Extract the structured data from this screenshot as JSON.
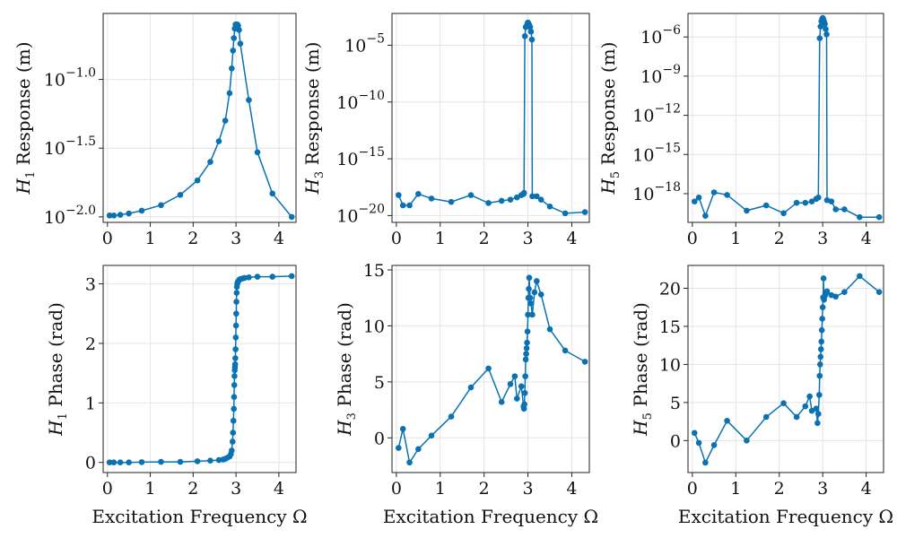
{
  "colors": {
    "series": "#0a72b2",
    "grid": "#e4e4e4",
    "frame": "#222222"
  },
  "chart_data": [
    {
      "type": "scatter",
      "yscale": "log10",
      "ylabel": {
        "symbol": "H",
        "sub": "1",
        "text": "Response (m)"
      },
      "xlabel": "",
      "xlim": [
        -0.1,
        4.4
      ],
      "ylim": [
        -2.04,
        -0.52
      ],
      "xticks": [
        0,
        1,
        2,
        3,
        4
      ],
      "yticks": [
        {
          "v": -1.0,
          "base": "10",
          "exp": "−1.0"
        },
        {
          "v": -1.5,
          "base": "10",
          "exp": "−1.5"
        },
        {
          "v": -2.0,
          "base": "10",
          "exp": "−2.0"
        }
      ],
      "grid": true,
      "x": [
        0.05,
        0.15,
        0.3,
        0.5,
        0.8,
        1.25,
        1.7,
        2.1,
        2.4,
        2.6,
        2.75,
        2.85,
        2.9,
        2.93,
        2.95,
        2.97,
        2.99,
        3.0,
        3.01,
        3.03,
        3.05,
        3.07,
        3.1,
        3.3,
        3.5,
        3.85,
        4.3
      ],
      "y": [
        -1.99,
        -1.99,
        -1.985,
        -1.975,
        -1.955,
        -1.915,
        -1.84,
        -1.735,
        -1.6,
        -1.45,
        -1.3,
        -1.1,
        -0.92,
        -0.79,
        -0.7,
        -0.63,
        -0.6,
        -0.6,
        -0.6,
        -0.6,
        -0.61,
        -0.64,
        -0.74,
        -1.15,
        -1.53,
        -1.83,
        -2.0
      ]
    },
    {
      "type": "scatter",
      "yscale": "log10",
      "ylabel": {
        "symbol": "H",
        "sub": "3",
        "text": "Response (m)"
      },
      "xlabel": "",
      "xlim": [
        -0.1,
        4.4
      ],
      "ylim": [
        -20.6,
        -2.2
      ],
      "xticks": [
        0,
        1,
        2,
        3,
        4
      ],
      "yticks": [
        {
          "v": -5,
          "base": "10",
          "exp": "−5"
        },
        {
          "v": -10,
          "base": "10",
          "exp": "−10"
        },
        {
          "v": -15,
          "base": "10",
          "exp": "−15"
        },
        {
          "v": -20,
          "base": "10",
          "exp": "−20"
        }
      ],
      "grid": true,
      "x": [
        0.05,
        0.15,
        0.3,
        0.5,
        0.8,
        1.25,
        1.7,
        2.1,
        2.4,
        2.6,
        2.75,
        2.85,
        2.9,
        2.91,
        2.93,
        2.95,
        2.97,
        2.99,
        3.0,
        3.01,
        3.03,
        3.05,
        3.07,
        3.09,
        3.1,
        3.2,
        3.3,
        3.5,
        3.85,
        4.3
      ],
      "y": [
        -18.2,
        -19.1,
        -19.1,
        -18.1,
        -18.5,
        -18.8,
        -18.2,
        -18.9,
        -18.7,
        -18.6,
        -18.4,
        -18.2,
        -18.1,
        -18.0,
        -4.2,
        -3.4,
        -3.3,
        -3.1,
        -3.0,
        -3.1,
        -3.2,
        -3.4,
        -3.8,
        -4.5,
        -18.3,
        -18.3,
        -18.6,
        -19.2,
        -19.8,
        -19.7
      ]
    },
    {
      "type": "scatter",
      "yscale": "log10",
      "ylabel": {
        "symbol": "H",
        "sub": "5",
        "text": "Response (m)"
      },
      "xlabel": "",
      "xlim": [
        -0.1,
        4.4
      ],
      "ylim": [
        -20.2,
        -4.2
      ],
      "xticks": [
        0,
        1,
        2,
        3,
        4
      ],
      "yticks": [
        {
          "v": -6,
          "base": "10",
          "exp": "−6"
        },
        {
          "v": -9,
          "base": "10",
          "exp": "−9"
        },
        {
          "v": -12,
          "base": "10",
          "exp": "−12"
        },
        {
          "v": -15,
          "base": "10",
          "exp": "−15"
        },
        {
          "v": -18,
          "base": "10",
          "exp": "−18"
        }
      ],
      "grid": true,
      "x": [
        0.05,
        0.15,
        0.3,
        0.5,
        0.8,
        1.25,
        1.7,
        2.1,
        2.4,
        2.6,
        2.75,
        2.85,
        2.9,
        2.93,
        2.95,
        2.97,
        2.99,
        3.0,
        3.01,
        3.03,
        3.05,
        3.07,
        3.09,
        3.1,
        3.2,
        3.3,
        3.5,
        3.85,
        4.3
      ],
      "y": [
        -18.6,
        -18.3,
        -19.7,
        -17.9,
        -18.1,
        -19.3,
        -18.9,
        -19.5,
        -18.7,
        -18.7,
        -18.6,
        -18.4,
        -18.3,
        -6.1,
        -5.2,
        -4.8,
        -4.6,
        -4.55,
        -4.6,
        -4.8,
        -5.0,
        -5.4,
        -5.8,
        -18.5,
        -18.6,
        -19.2,
        -19.2,
        -19.8,
        -19.8
      ]
    },
    {
      "type": "scatter",
      "yscale": "linear",
      "ylabel": {
        "symbol": "H",
        "sub": "1",
        "text": "Phase (rad)"
      },
      "xlabel": "Excitation Frequency Ω",
      "xlim": [
        -0.1,
        4.4
      ],
      "ylim": [
        -0.17,
        3.31
      ],
      "xticks": [
        0,
        1,
        2,
        3,
        4
      ],
      "yticks": [
        {
          "v": 0,
          "label": "0"
        },
        {
          "v": 1,
          "label": "1"
        },
        {
          "v": 2,
          "label": "2"
        },
        {
          "v": 3,
          "label": "3"
        }
      ],
      "grid": true,
      "x": [
        0.05,
        0.15,
        0.3,
        0.5,
        0.8,
        1.25,
        1.7,
        2.1,
        2.4,
        2.6,
        2.7,
        2.75,
        2.8,
        2.85,
        2.88,
        2.9,
        2.92,
        2.93,
        2.94,
        2.95,
        2.955,
        2.96,
        2.965,
        2.97,
        2.975,
        2.98,
        2.985,
        2.99,
        2.995,
        3.0,
        3.005,
        3.01,
        3.015,
        3.02,
        3.03,
        3.04,
        3.06,
        3.08,
        3.1,
        3.15,
        3.2,
        3.3,
        3.5,
        3.85,
        4.3
      ],
      "y": [
        0.0,
        0.0,
        0.0,
        0.0,
        0.005,
        0.01,
        0.01,
        0.02,
        0.03,
        0.04,
        0.05,
        0.06,
        0.08,
        0.1,
        0.14,
        0.2,
        0.35,
        0.5,
        0.7,
        0.9,
        1.1,
        1.3,
        1.45,
        1.55,
        1.6,
        1.65,
        1.75,
        1.9,
        2.1,
        2.3,
        2.5,
        2.7,
        2.85,
        2.95,
        3.0,
        3.03,
        3.05,
        3.07,
        3.08,
        3.09,
        3.1,
        3.11,
        3.12,
        3.12,
        3.13
      ]
    },
    {
      "type": "scatter",
      "yscale": "linear",
      "ylabel": {
        "symbol": "H",
        "sub": "3",
        "text": "Phase (rad)"
      },
      "xlabel": "Excitation Frequency Ω",
      "xlim": [
        -0.1,
        4.4
      ],
      "ylim": [
        -3.1,
        15.4
      ],
      "xticks": [
        0,
        1,
        2,
        3,
        4
      ],
      "yticks": [
        {
          "v": 0,
          "label": "0"
        },
        {
          "v": 5,
          "label": "5"
        },
        {
          "v": 10,
          "label": "10"
        },
        {
          "v": 15,
          "label": "15"
        }
      ],
      "grid": true,
      "x": [
        0.05,
        0.15,
        0.3,
        0.5,
        0.8,
        1.25,
        1.7,
        2.1,
        2.4,
        2.6,
        2.7,
        2.75,
        2.85,
        2.9,
        2.91,
        2.92,
        2.93,
        2.94,
        2.95,
        2.96,
        2.97,
        2.98,
        2.99,
        3.0,
        3.01,
        3.02,
        3.03,
        3.05,
        3.07,
        3.1,
        3.15,
        3.2,
        3.3,
        3.5,
        3.85,
        4.3
      ],
      "y": [
        -0.9,
        0.8,
        -2.2,
        -1.0,
        0.2,
        1.9,
        4.5,
        6.2,
        3.2,
        4.8,
        5.5,
        3.5,
        4.6,
        2.8,
        2.6,
        3.0,
        4.0,
        5.5,
        7.0,
        7.5,
        8.0,
        8.5,
        9.5,
        11.0,
        12.5,
        13.3,
        14.3,
        12.5,
        12.0,
        11.0,
        13.0,
        14.0,
        12.8,
        9.7,
        7.8,
        6.8
      ]
    },
    {
      "type": "scatter",
      "yscale": "linear",
      "ylabel": {
        "symbol": "H",
        "sub": "5",
        "text": "Phase (rad)"
      },
      "xlabel": "Excitation Frequency Ω",
      "xlim": [
        -0.1,
        4.4
      ],
      "ylim": [
        -4.2,
        23.0
      ],
      "xticks": [
        0,
        1,
        2,
        3,
        4
      ],
      "yticks": [
        {
          "v": 0,
          "label": "0"
        },
        {
          "v": 5,
          "label": "5"
        },
        {
          "v": 10,
          "label": "10"
        },
        {
          "v": 15,
          "label": "15"
        },
        {
          "v": 20,
          "label": "20"
        }
      ],
      "grid": true,
      "x": [
        0.05,
        0.15,
        0.3,
        0.5,
        0.8,
        1.25,
        1.7,
        2.1,
        2.4,
        2.6,
        2.7,
        2.75,
        2.85,
        2.88,
        2.9,
        2.92,
        2.93,
        2.94,
        2.95,
        2.96,
        2.97,
        2.98,
        2.99,
        3.0,
        3.01,
        3.02,
        3.03,
        3.05,
        3.07,
        3.1,
        3.2,
        3.3,
        3.5,
        3.85,
        4.3
      ],
      "y": [
        1.0,
        -0.3,
        -2.9,
        -0.6,
        2.6,
        0.0,
        3.1,
        4.9,
        3.1,
        4.5,
        5.8,
        3.9,
        4.2,
        2.3,
        3.5,
        6.0,
        8.5,
        10.0,
        11.0,
        12.0,
        13.0,
        14.5,
        16.0,
        17.5,
        18.8,
        21.3,
        18.5,
        19.0,
        19.3,
        19.6,
        19.1,
        18.9,
        19.5,
        21.6,
        19.5
      ]
    }
  ]
}
